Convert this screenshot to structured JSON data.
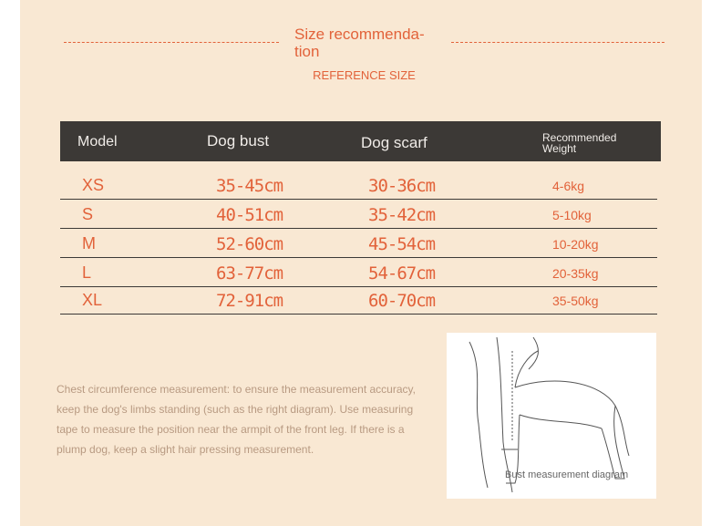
{
  "title": "Size recommenda-tion",
  "subtitle": "REFERENCE SIZE",
  "table": {
    "headers": [
      "Model",
      "Dog bust",
      "Dog scarf",
      "Recommended Weight"
    ],
    "rows": [
      [
        "XS",
        "35-45cm",
        "30-36cm",
        "4-6kg"
      ],
      [
        "S",
        "40-51cm",
        "35-42cm",
        "5-10kg"
      ],
      [
        "M",
        "52-60cm",
        "45-54cm",
        "10-20kg"
      ],
      [
        "L",
        "63-77cm",
        "54-67cm",
        "20-35kg"
      ],
      [
        "XL",
        "72-91cm",
        "60-70cm",
        "35-50kg"
      ]
    ]
  },
  "description": "Chest circumference measurement: to ensure the measurement accuracy, keep the dog's limbs standing (such as the right diagram). Use measuring tape to measure the position near the armpit of the front leg. If there is a plump dog, keep a slight hair pressing measurement.",
  "diagram_caption": "Bust measurement diagram",
  "colors": {
    "accent": "#e2623a",
    "background": "#f9e8d3",
    "header": "#3c3936"
  }
}
